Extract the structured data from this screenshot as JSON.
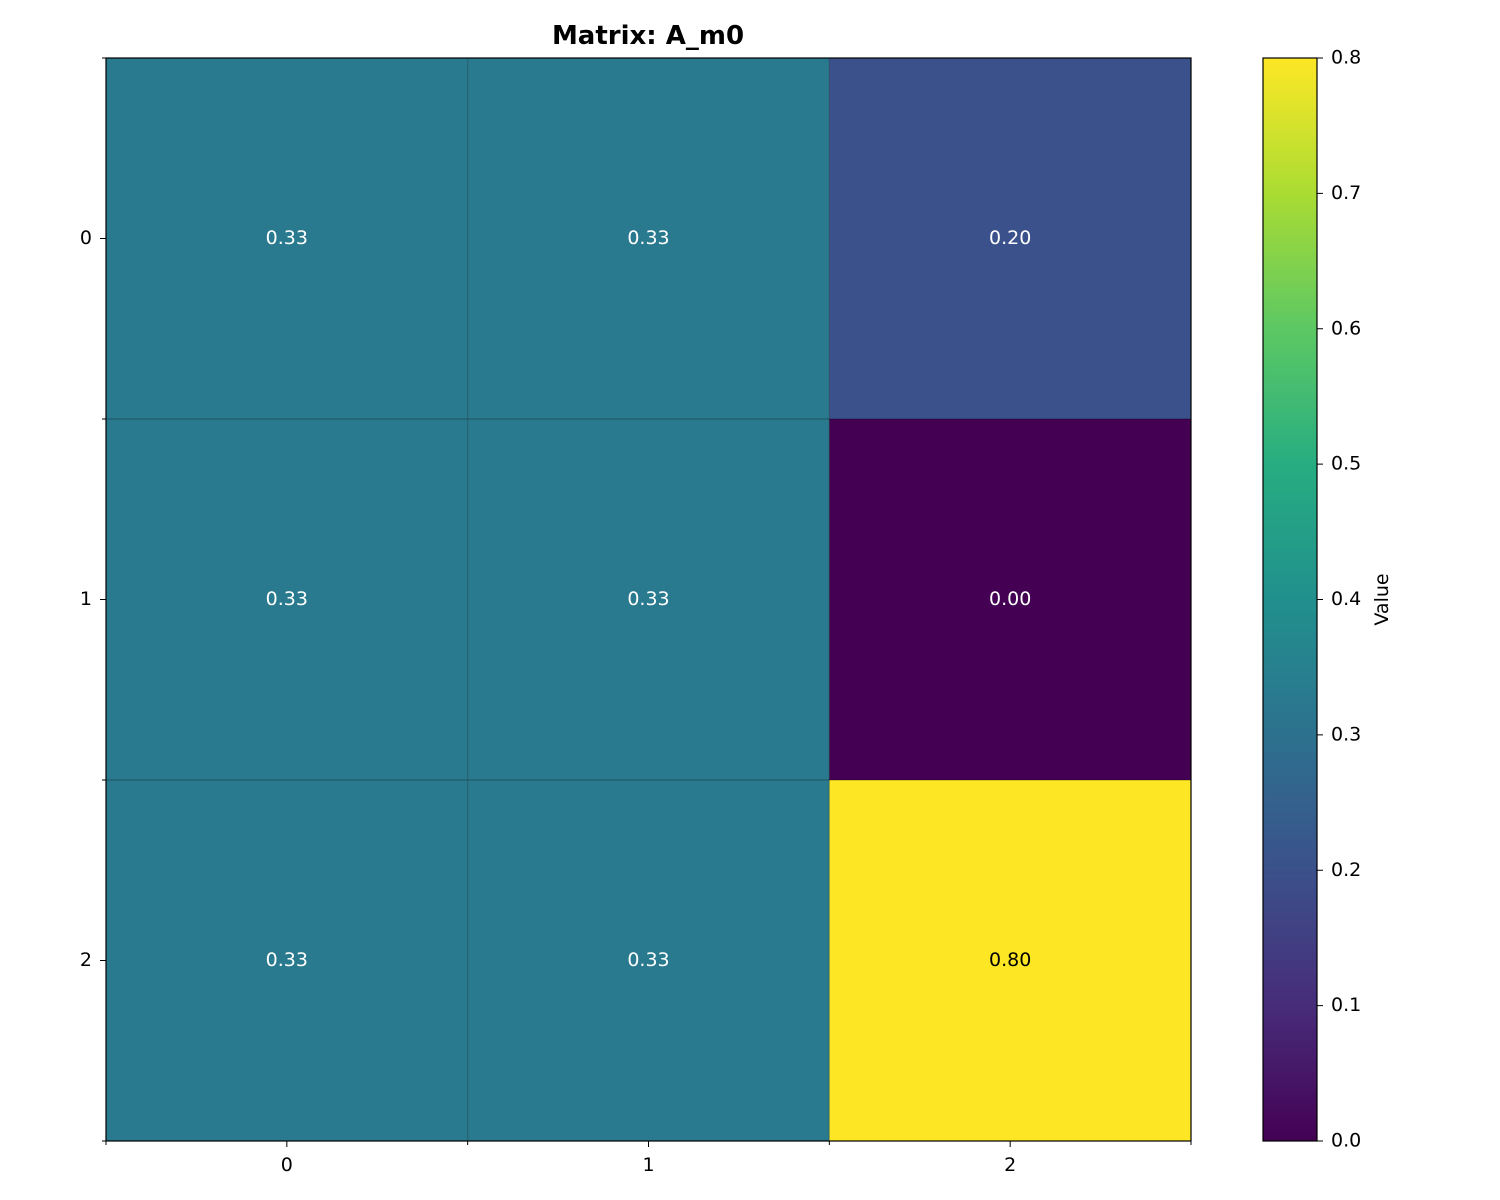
{
  "chart_data": {
    "type": "heatmap",
    "title": "Matrix: A_m0",
    "x_categories": [
      "0",
      "1",
      "2"
    ],
    "y_categories": [
      "0",
      "1",
      "2"
    ],
    "values": [
      [
        0.33,
        0.33,
        0.2
      ],
      [
        0.33,
        0.33,
        0.0
      ],
      [
        0.33,
        0.33,
        0.8
      ]
    ],
    "cell_labels": [
      [
        "0.33",
        "0.33",
        "0.20"
      ],
      [
        "0.33",
        "0.33",
        "0.00"
      ],
      [
        "0.33",
        "0.33",
        "0.80"
      ]
    ],
    "colormap": "viridis",
    "vmin": 0.0,
    "vmax": 0.8,
    "colorbar": {
      "label": "Value",
      "ticks": [
        "0.0",
        "0.1",
        "0.2",
        "0.3",
        "0.4",
        "0.5",
        "0.6",
        "0.7",
        "0.8"
      ]
    },
    "xlabel": "",
    "ylabel": "",
    "grid": true
  }
}
